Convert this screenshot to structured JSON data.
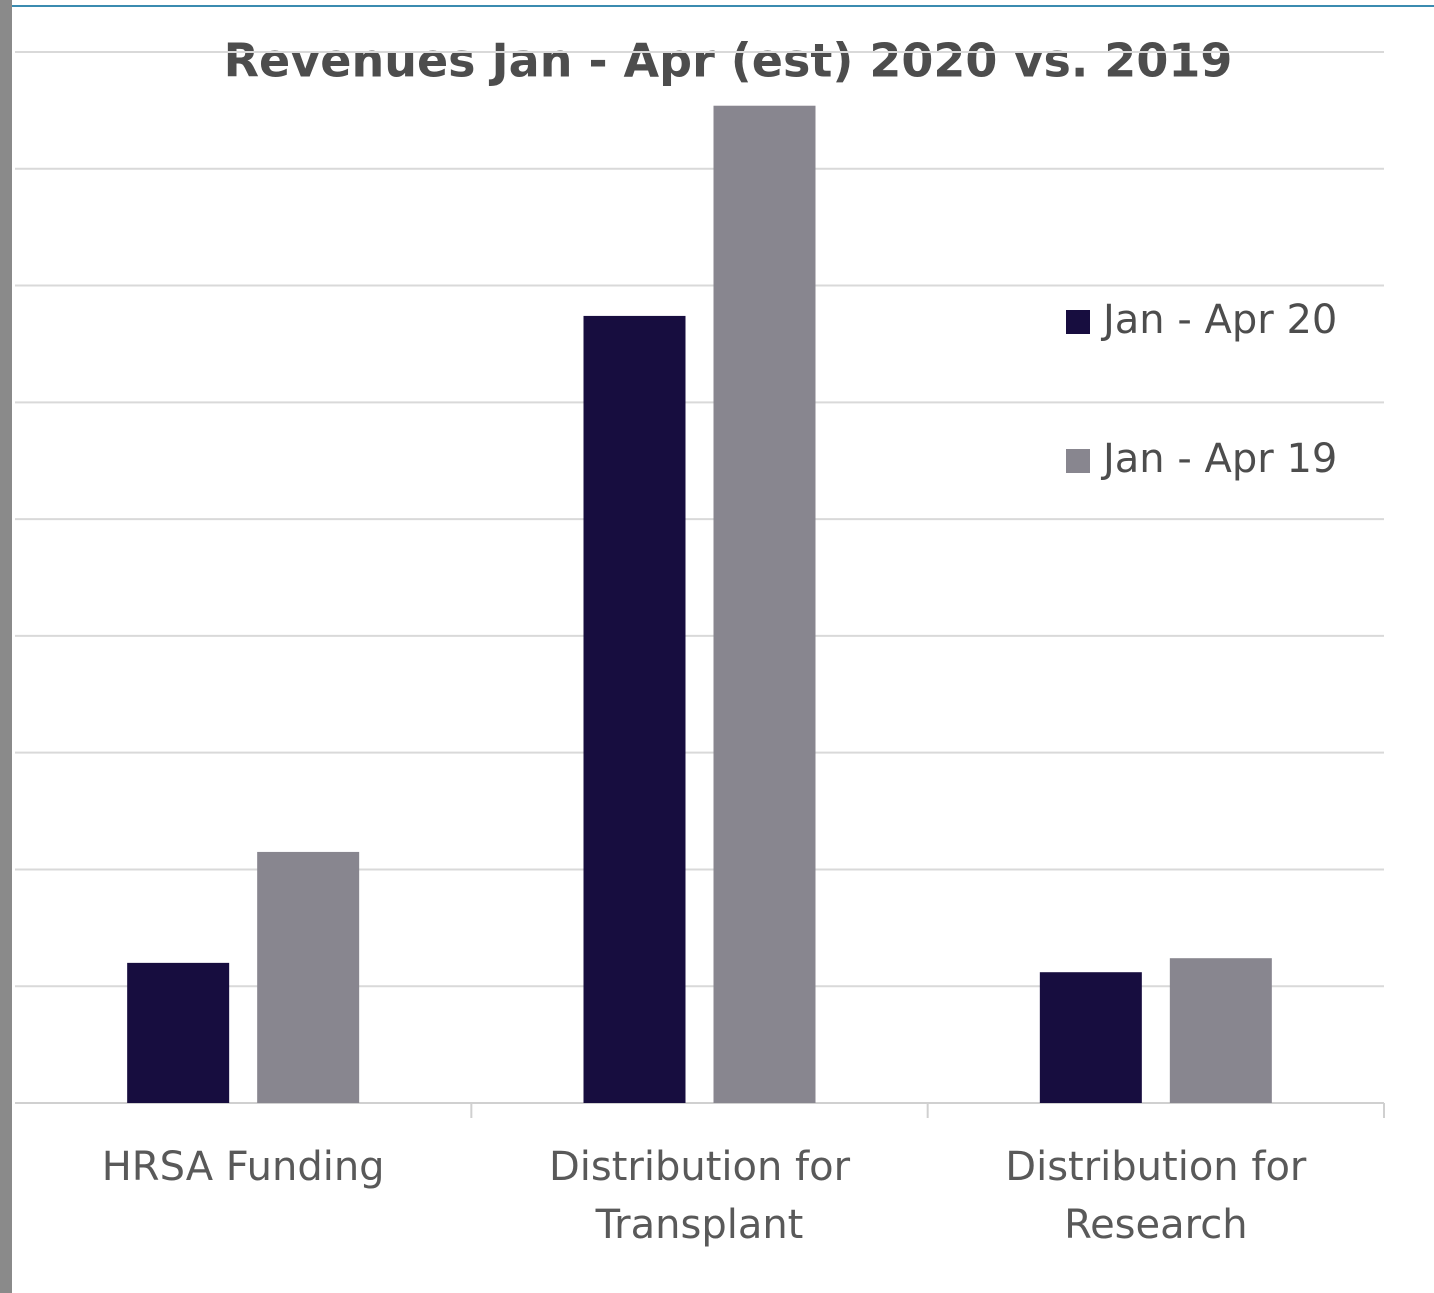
{
  "chart_data": {
    "type": "bar",
    "title": "Revenues Jan - Apr (est) 2020 vs. 2019",
    "categories": [
      "HRSA Funding",
      "Distribution for Transplant",
      "Distribution for Research"
    ],
    "series": [
      {
        "name": "Jan - Apr 20",
        "color": "#170d3f",
        "values": [
          1.2,
          6.74,
          1.12
        ]
      },
      {
        "name": "Jan - Apr 19",
        "color": "#88868f",
        "values": [
          2.15,
          8.54,
          1.24
        ]
      }
    ],
    "ylim": [
      0,
      9
    ],
    "yticks": [
      0,
      1,
      2,
      3,
      4,
      5,
      6,
      7,
      8,
      9
    ],
    "grid": true,
    "legend": "right"
  }
}
